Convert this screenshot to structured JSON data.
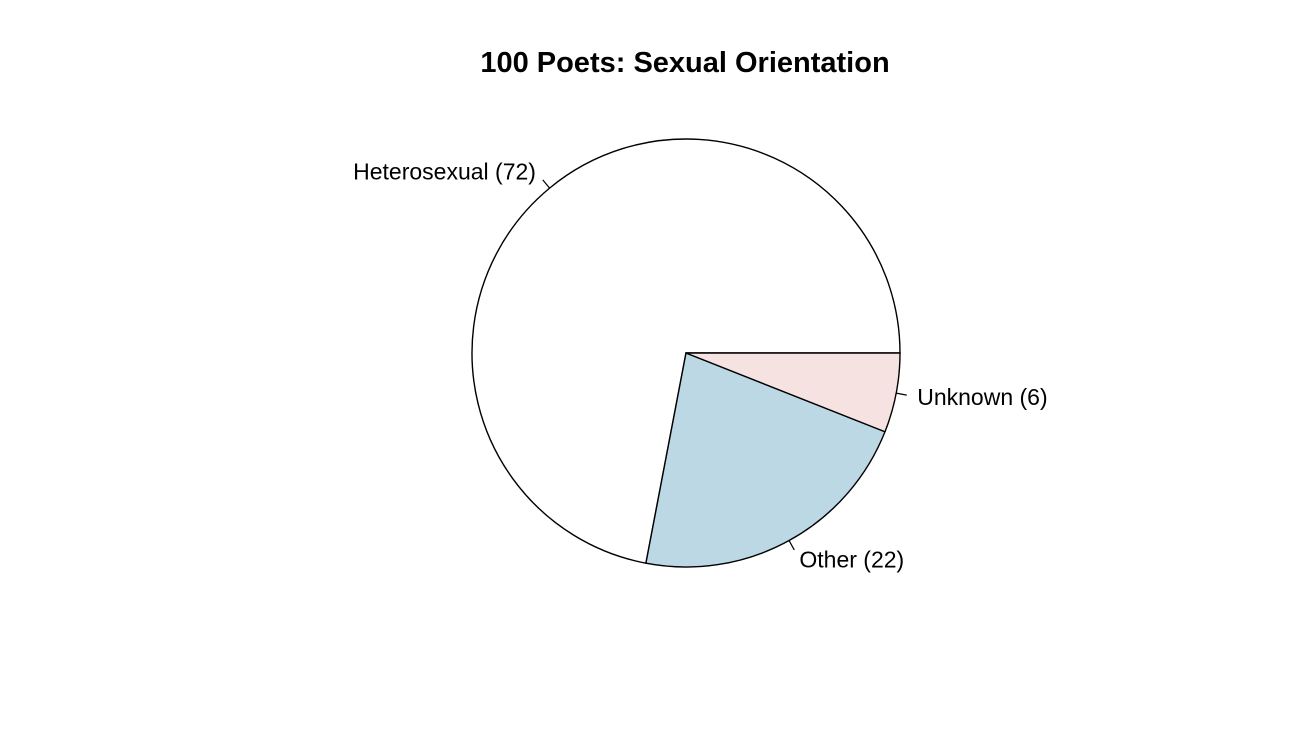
{
  "chart_data": {
    "type": "pie",
    "title": "100 Poets: Sexual Orientation",
    "slices": [
      {
        "label": "Heterosexual (72)",
        "category": "Heterosexual",
        "value": 72,
        "color": "#ffffff"
      },
      {
        "label": "Other (22)",
        "category": "Other",
        "value": 22,
        "color": "#bcd8e5"
      },
      {
        "label": "Unknown (6)",
        "category": "Unknown",
        "value": 6,
        "color": "#f6e2e0"
      }
    ],
    "start_angle_deg": 0,
    "direction": "counterclockwise"
  }
}
